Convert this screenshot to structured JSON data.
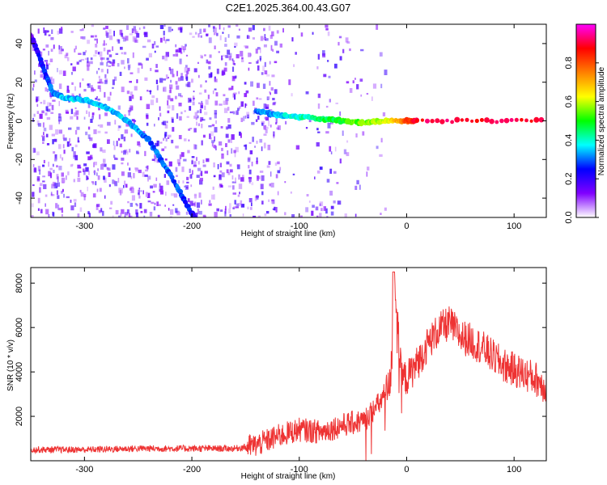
{
  "title": "C2E1.2025.364.00.43.G07",
  "chart_data": [
    {
      "type": "heatmap",
      "xlabel": "Height of straight line (km)",
      "ylabel": "Frequency (Hz)",
      "xlim": [
        -350,
        130
      ],
      "ylim": [
        -50,
        50
      ],
      "x_ticks": [
        -300,
        -200,
        -100,
        0,
        100
      ],
      "y_ticks": [
        -40,
        -20,
        0,
        20,
        40
      ],
      "colorbar": {
        "label": "Normalized spectral amplitude",
        "range": [
          0.0,
          1.0
        ],
        "ticks": [
          0.0,
          0.2,
          0.4,
          0.6,
          0.8
        ],
        "tick_labels": [
          "0.0",
          "0.2",
          "0.4",
          "0.6",
          "0.8"
        ],
        "colormap": [
          "#ffffff",
          "#8000ff",
          "#0000ff",
          "#00ffff",
          "#00ff00",
          "#ffff00",
          "#ff8000",
          "#ff0000",
          "#ff00ff"
        ]
      },
      "ridges": [
        {
          "desc": "descending curve",
          "x": [
            -350,
            -340,
            -330,
            -320,
            -300,
            -280,
            -260,
            -240,
            -220,
            -200,
            -195
          ],
          "y": [
            45,
            30,
            15,
            12,
            11,
            7,
            0,
            -10,
            -28,
            -48,
            -52
          ],
          "amplitude": [
            0.15,
            0.25,
            0.3,
            0.35,
            0.35,
            0.35,
            0.35,
            0.3,
            0.3,
            0.25,
            0.2
          ]
        },
        {
          "desc": "near-zero frequency band",
          "x": [
            -140,
            -120,
            -100,
            -80,
            -60,
            -40,
            -20,
            0,
            10,
            130
          ],
          "y": [
            5,
            3,
            2,
            1,
            0,
            -1,
            0,
            0,
            0,
            0
          ],
          "amplitude": [
            0.3,
            0.35,
            0.4,
            0.45,
            0.5,
            0.55,
            0.6,
            0.8,
            0.9,
            0.9
          ]
        }
      ]
    },
    {
      "type": "line",
      "xlabel": "Height of straight line (km)",
      "ylabel": "SNR (10 * v/v)",
      "xlim": [
        -350,
        130
      ],
      "ylim": [
        0,
        8700
      ],
      "x_ticks": [
        -300,
        -200,
        -100,
        0,
        100
      ],
      "y_ticks": [
        2000,
        4000,
        6000,
        8000
      ],
      "color": "#ee3333",
      "x": [
        -350,
        -300,
        -250,
        -200,
        -160,
        -140,
        -120,
        -100,
        -80,
        -60,
        -40,
        -25,
        -15,
        -12,
        -5,
        0,
        10,
        20,
        30,
        40,
        50,
        60,
        70,
        80,
        90,
        100,
        110,
        120,
        130
      ],
      "y": [
        500,
        500,
        550,
        550,
        550,
        700,
        1100,
        1400,
        1300,
        1600,
        1800,
        2600,
        3500,
        8600,
        3800,
        3700,
        4400,
        5300,
        5900,
        6200,
        5600,
        5400,
        5100,
        4700,
        4300,
        4100,
        3900,
        3700,
        3300
      ]
    }
  ]
}
